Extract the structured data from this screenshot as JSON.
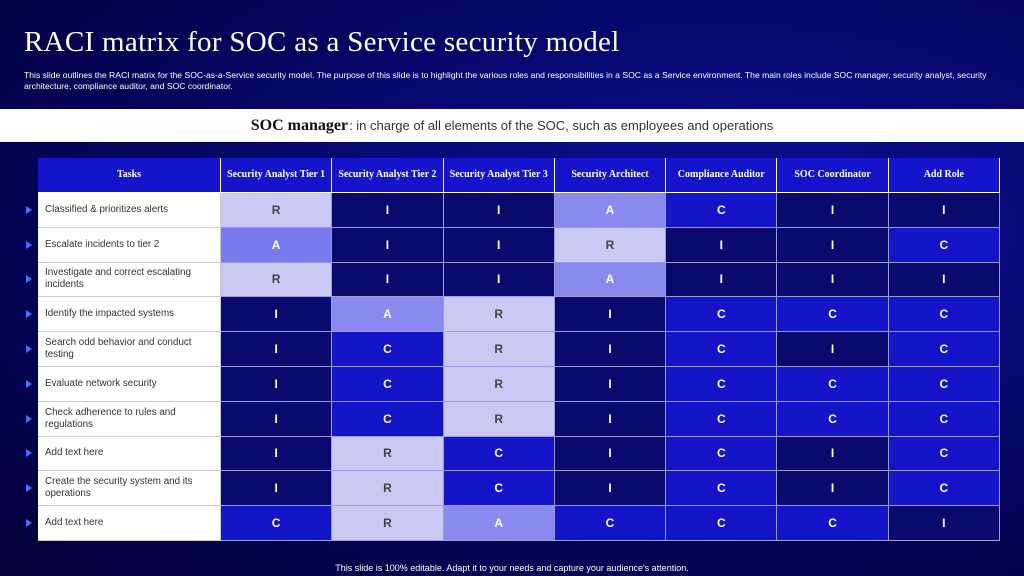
{
  "title": "RACI matrix for SOC as a Service security model",
  "description": "This slide outlines the RACI matrix for the SOC-as-a-Service security model. The purpose of this slide is to highlight the various roles and responsibilities in a SOC as a Service environment. The main roles include SOC manager, security analyst, security architecture, compliance auditor, and SOC coordinator.",
  "banner": {
    "label": "SOC manager",
    "text": ": in charge of all elements of the SOC, such as employees and operations"
  },
  "table": {
    "header": [
      "Tasks",
      "Security Analyst Tier 1",
      "Security Analyst Tier 2",
      "Security Analyst Tier 3",
      "Security Architect",
      "Compliance Auditor",
      "SOC Coordinator",
      "Add Role"
    ],
    "rows": [
      [
        "Classified & prioritizes alerts",
        "R",
        "I",
        "I",
        "A",
        "C",
        "I",
        "I"
      ],
      [
        "Escalate incidents to tier 2",
        "A",
        "I",
        "I",
        "R",
        "I",
        "I",
        "C"
      ],
      [
        "Investigate  and correct escalating incidents",
        "R",
        "I",
        "I",
        "A",
        "I",
        "I",
        "I"
      ],
      [
        "Identify the impacted systems",
        "I",
        "A",
        "R",
        "I",
        "C",
        "C",
        "C"
      ],
      [
        "Search odd behavior  and conduct testing",
        "I",
        "C",
        "R",
        "I",
        "C",
        "I",
        "C"
      ],
      [
        "Evaluate network security",
        "I",
        "C",
        "R",
        "I",
        "C",
        "C",
        "C"
      ],
      [
        "Check adherence to rules and regulations",
        "I",
        "C",
        "R",
        "I",
        "C",
        "C",
        "C"
      ],
      [
        "Add text here",
        "I",
        "R",
        "C",
        "I",
        "C",
        "I",
        "C"
      ],
      [
        "Create the security system and its operations",
        "I",
        "R",
        "C",
        "I",
        "C",
        "I",
        "C"
      ],
      [
        "Add text here",
        "C",
        "R",
        "A",
        "C",
        "C",
        "C",
        "I"
      ]
    ],
    "cell_colors": [
      [
        "#c9c9f3",
        "#0a0a6e",
        "#0a0a6e",
        "#8a8aee",
        "#1414c8",
        "#0a0a6e",
        "#0a0a6e"
      ],
      [
        "#7a7aee",
        "#0a0a6e",
        "#0a0a6e",
        "#c9c9f3",
        "#0a0a6e",
        "#0a0a6e",
        "#1414c8"
      ],
      [
        "#c9c9f3",
        "#0a0a6e",
        "#0a0a6e",
        "#8a8aee",
        "#0a0a6e",
        "#0a0a6e",
        "#0a0a6e"
      ],
      [
        "#0a0a6e",
        "#8a8aee",
        "#c9c9f3",
        "#0a0a6e",
        "#1414c8",
        "#1414c8",
        "#1414c8"
      ],
      [
        "#0a0a6e",
        "#1414c8",
        "#c9c9f3",
        "#0a0a6e",
        "#1414c8",
        "#0a0a6e",
        "#1414c8"
      ],
      [
        "#0a0a6e",
        "#1414c8",
        "#c9c9f3",
        "#0a0a6e",
        "#1414c8",
        "#1414c8",
        "#1414c8"
      ],
      [
        "#0a0a6e",
        "#1414c8",
        "#c9c9f3",
        "#0a0a6e",
        "#1414c8",
        "#1414c8",
        "#1414c8"
      ],
      [
        "#0a0a6e",
        "#c9c9f3",
        "#1414c8",
        "#0a0a6e",
        "#1414c8",
        "#0a0a6e",
        "#1414c8"
      ],
      [
        "#0a0a6e",
        "#c9c9f3",
        "#1414c8",
        "#0a0a6e",
        "#1414c8",
        "#0a0a6e",
        "#1414c8"
      ],
      [
        "#1414c8",
        "#c9c9f3",
        "#8a8aee",
        "#1414c8",
        "#1414c8",
        "#1414c8",
        "#0a0a6e"
      ]
    ]
  },
  "footer": "This slide is 100% editable. Adapt it to your needs and capture your audience's attention."
}
